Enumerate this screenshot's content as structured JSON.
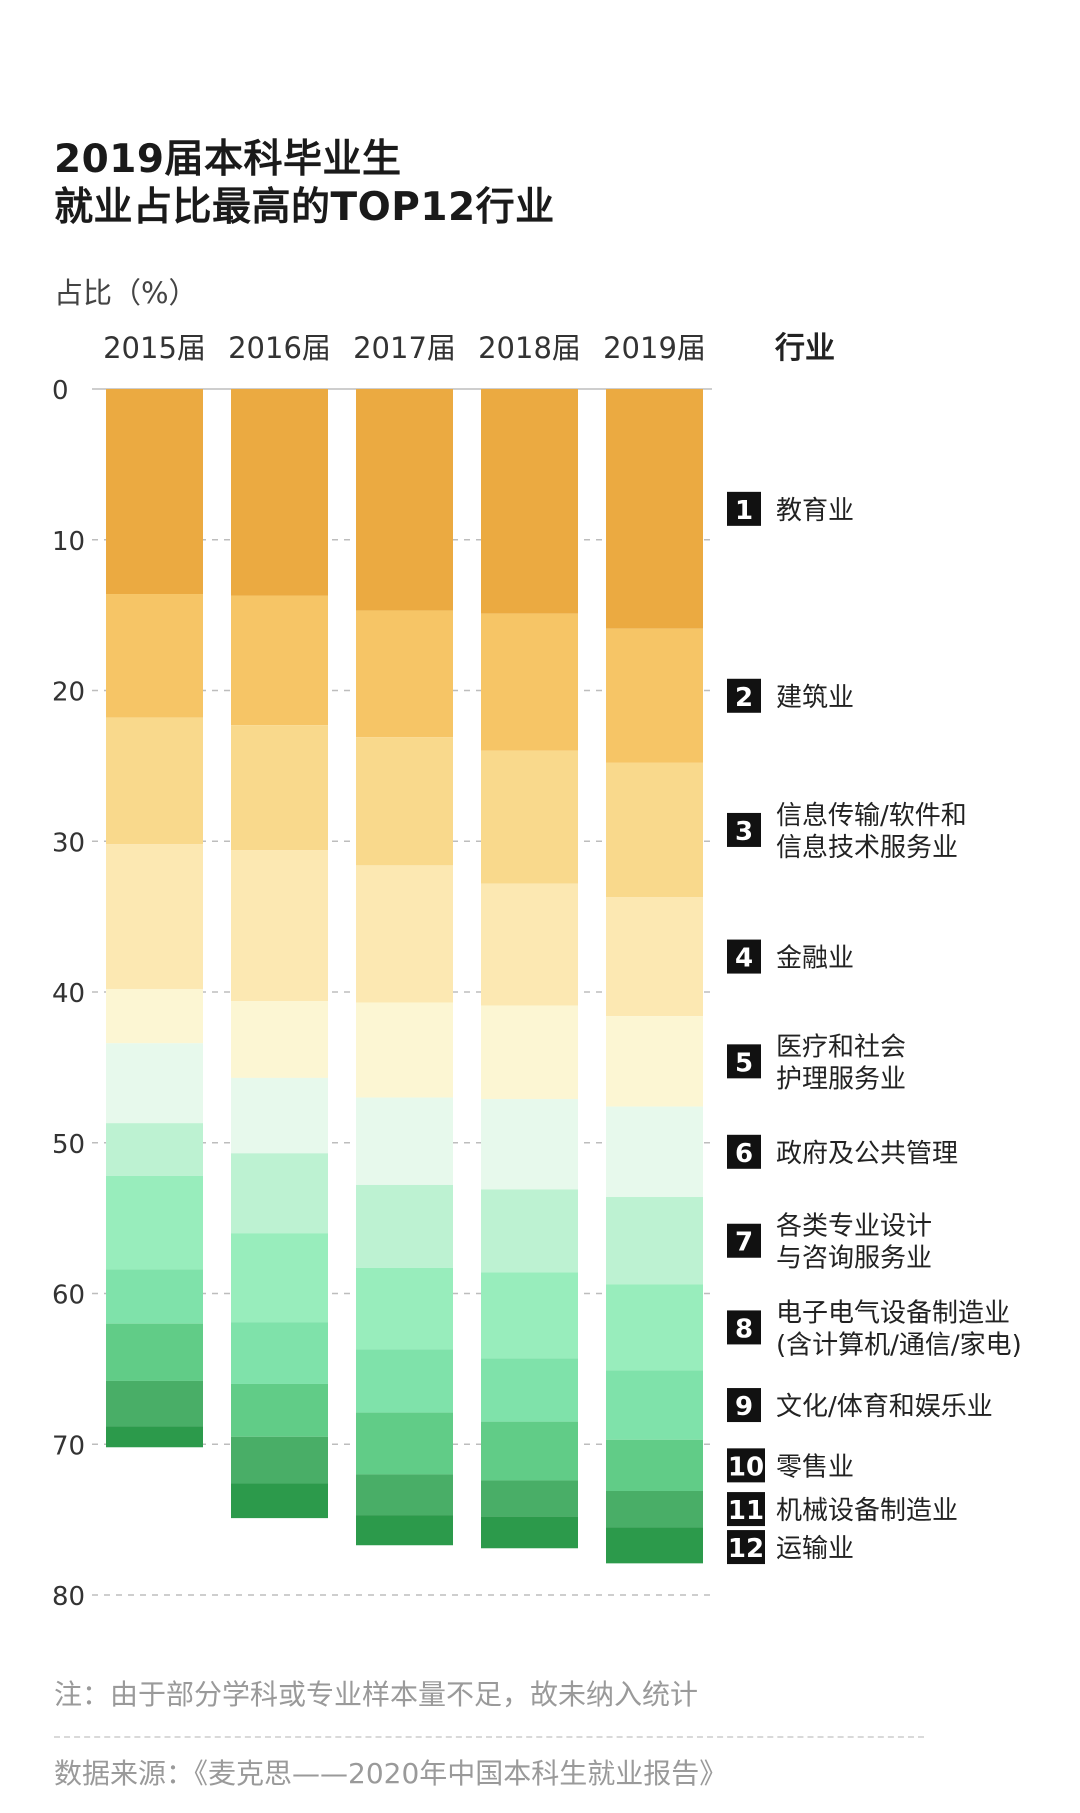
{
  "title": {
    "line1": "2019届本科毕业生",
    "line2": "就业占比最高的TOP12行业"
  },
  "note": "注：由于部分学科或专业样本量不足，故未纳入统计",
  "source": "数据来源：《麦克思——2020年中国本科生就业报告》",
  "chart_data": {
    "type": "bar",
    "stacked": true,
    "orientation": "vertical-downward",
    "ylabel": "占比（%）",
    "ylim": [
      0,
      80
    ],
    "yticks": [
      0,
      10,
      20,
      30,
      40,
      50,
      60,
      70,
      80
    ],
    "grid": true,
    "legend_title": "行业",
    "legend_position": "right",
    "categories": [
      "2015届",
      "2016届",
      "2017届",
      "2018届",
      "2019届"
    ],
    "series": [
      {
        "rank": "1",
        "name": "教育业",
        "color": "#EBAA41",
        "values": [
          13.6,
          13.7,
          14.7,
          14.9,
          15.9
        ]
      },
      {
        "rank": "2",
        "name": "建筑业",
        "color": "#F6C566",
        "values": [
          8.2,
          8.6,
          8.4,
          9.1,
          8.9
        ]
      },
      {
        "rank": "3",
        "name": "信息传输/软件和\n信息技术服务业",
        "color": "#F9D98C",
        "values": [
          8.4,
          8.3,
          8.5,
          8.8,
          8.9
        ]
      },
      {
        "rank": "4",
        "name": "金融业",
        "color": "#FCE8B2",
        "values": [
          9.6,
          10.0,
          9.1,
          8.1,
          7.9
        ]
      },
      {
        "rank": "5",
        "name": "医疗和社会\n护理服务业",
        "color": "#FCF6D3",
        "values": [
          3.6,
          5.1,
          6.3,
          6.2,
          6.0
        ]
      },
      {
        "rank": "6",
        "name": "政府及公共管理",
        "color": "#E7F9EC",
        "values": [
          5.3,
          5.0,
          5.8,
          6.0,
          6.0
        ]
      },
      {
        "rank": "7",
        "name": "各类专业设计\n与咨询服务业",
        "color": "#BDF2D2",
        "values": [
          3.5,
          5.3,
          5.5,
          5.5,
          5.8
        ]
      },
      {
        "rank": "8",
        "name": "电子电气设备制造业\n(含计算机/通信/家电)",
        "color": "#98EDBC",
        "values": [
          6.2,
          5.9,
          5.4,
          5.7,
          5.7
        ]
      },
      {
        "rank": "9",
        "name": "文化/体育和娱乐业",
        "color": "#7FE2AA",
        "values": [
          3.6,
          4.1,
          4.2,
          4.2,
          4.6
        ]
      },
      {
        "rank": "10",
        "name": "零售业",
        "color": "#61CC87",
        "values": [
          3.8,
          3.5,
          4.1,
          3.9,
          3.4
        ]
      },
      {
        "rank": "11",
        "name": "机械设备制造业",
        "color": "#49AE67",
        "values": [
          3.0,
          3.1,
          2.7,
          2.4,
          2.4
        ]
      },
      {
        "rank": "12",
        "name": "运输业",
        "color": "#2C9A4B",
        "values": [
          1.4,
          2.3,
          2.0,
          2.1,
          2.4
        ]
      }
    ]
  }
}
